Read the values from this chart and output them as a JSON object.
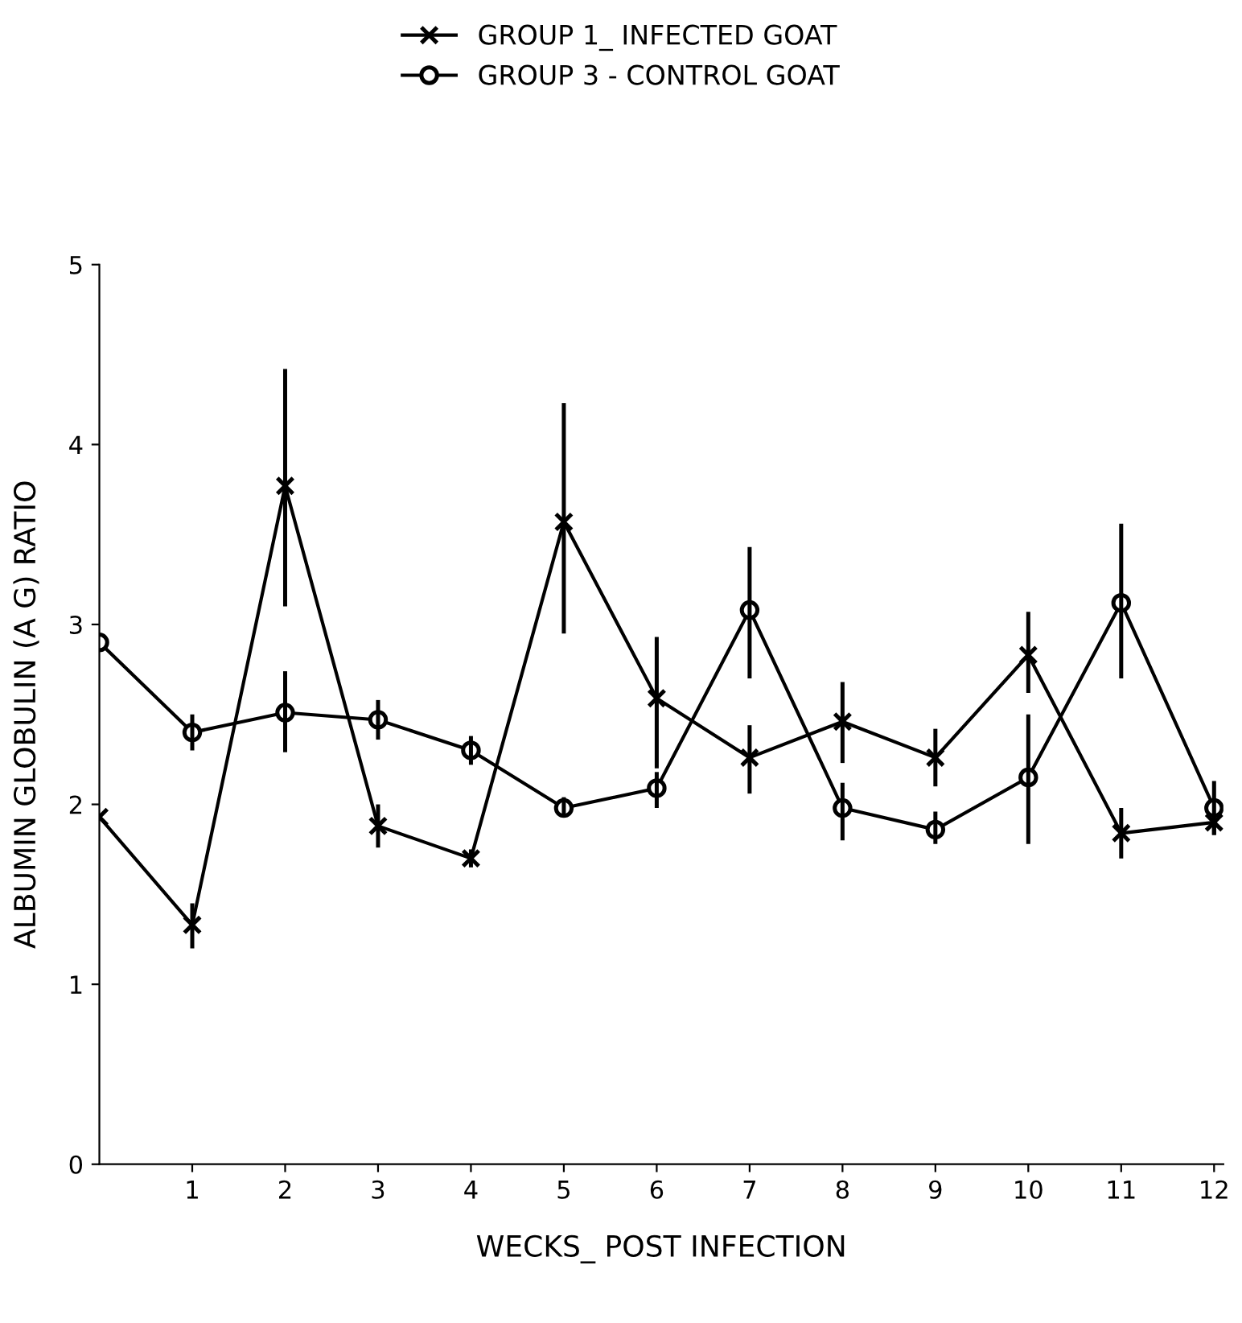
{
  "chart_data": {
    "type": "line",
    "xlabel": "WECKS_ POST INFECTION",
    "ylabel": "ALBUMIN GLOBULIN (A G) RATIO",
    "x": [
      0,
      1,
      2,
      3,
      4,
      5,
      6,
      7,
      8,
      9,
      10,
      11,
      12
    ],
    "series": [
      {
        "name": "GROUP 1_ INFECTED GOAT",
        "color": "#000000",
        "marker": "cross",
        "values": [
          1.93,
          1.33,
          3.77,
          1.88,
          1.7,
          3.57,
          2.59,
          2.26,
          2.46,
          2.26,
          2.83,
          1.84,
          1.9
        ],
        "errors": [
          null,
          [
            1.2,
            1.45
          ],
          [
            3.1,
            4.42
          ],
          [
            1.76,
            2.0
          ],
          [
            1.65,
            1.75
          ],
          [
            2.95,
            4.23
          ],
          [
            2.2,
            2.93
          ],
          [
            2.06,
            2.44
          ],
          [
            2.23,
            2.68
          ],
          [
            2.1,
            2.42
          ],
          [
            2.62,
            3.07
          ],
          [
            1.7,
            1.98
          ],
          [
            1.83,
            1.97
          ]
        ]
      },
      {
        "name": "GROUP 3 - CONTROL GOAT",
        "color": "#000000",
        "marker": "circle",
        "values": [
          2.9,
          2.4,
          2.51,
          2.47,
          2.3,
          1.98,
          2.09,
          3.08,
          1.98,
          1.86,
          2.15,
          3.12,
          1.98
        ],
        "errors": [
          null,
          [
            2.3,
            2.5
          ],
          [
            2.29,
            2.74
          ],
          [
            2.36,
            2.58
          ],
          [
            2.22,
            2.38
          ],
          [
            1.93,
            2.04
          ],
          [
            1.98,
            2.18
          ],
          [
            2.7,
            3.43
          ],
          [
            1.8,
            2.12
          ],
          [
            1.78,
            1.96
          ],
          [
            1.78,
            2.5
          ],
          [
            2.7,
            3.56
          ],
          [
            1.83,
            2.13
          ]
        ]
      }
    ],
    "xlim": [
      0,
      12.1
    ],
    "xticks": [
      1,
      2,
      3,
      4,
      5,
      6,
      7,
      8,
      9,
      10,
      11,
      12
    ],
    "ylim": [
      0,
      5
    ],
    "yticks": [
      0,
      1,
      2,
      3,
      4,
      5
    ],
    "grid": false,
    "legend": "top",
    "line_style": "solid"
  }
}
